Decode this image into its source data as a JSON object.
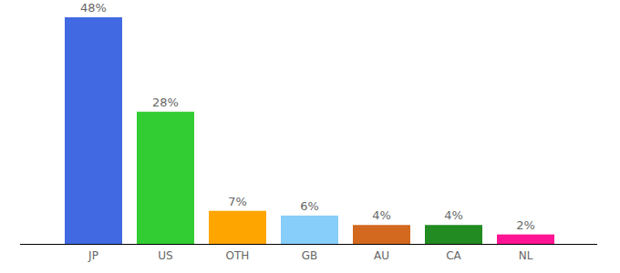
{
  "chart_data": {
    "type": "bar",
    "categories": [
      "JP",
      "US",
      "OTH",
      "GB",
      "AU",
      "CA",
      "NL"
    ],
    "values": [
      48,
      28,
      7,
      6,
      4,
      4,
      2
    ],
    "value_labels": [
      "48%",
      "28%",
      "7%",
      "6%",
      "4%",
      "4%",
      "2%"
    ],
    "colors": [
      "#4169e1",
      "#32cd32",
      "#ffa500",
      "#87cefa",
      "#d2691e",
      "#228b22",
      "#ff1493"
    ],
    "ylim": [
      0,
      48
    ],
    "data_labels": true,
    "tick_labels": "x",
    "grid": false
  }
}
